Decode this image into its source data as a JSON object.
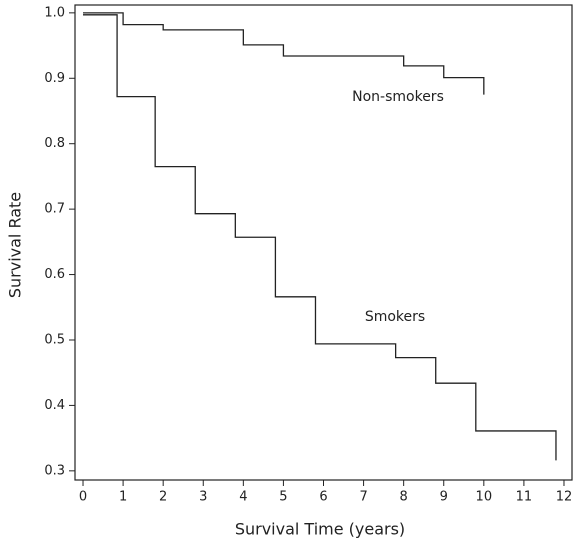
{
  "chart_data": {
    "type": "step",
    "x_label": "Survival Time (years)",
    "y_label": "Survival Rate",
    "xlim": [
      -0.2,
      12.2
    ],
    "ylim": [
      0.286,
      1.012
    ],
    "xticks": [
      0,
      1,
      2,
      3,
      4,
      5,
      6,
      7,
      8,
      9,
      10,
      11,
      12
    ],
    "yticks": [
      0.3,
      0.4,
      0.5,
      0.6,
      0.7,
      0.8,
      0.9,
      {
        "value": 1,
        "label": "1.0"
      }
    ],
    "grid": false,
    "series": [
      {
        "name": "Non-smokers",
        "color": "#222222",
        "x": [
          0,
          1.0,
          2.0,
          4.0,
          5.0,
          8.0,
          9.0,
          10.0
        ],
        "values": [
          1.0,
          0.982,
          0.974,
          0.951,
          0.934,
          0.919,
          0.901,
          0.875
        ]
      },
      {
        "name": "Smokers",
        "color": "#222222",
        "x": [
          0,
          0.85,
          1.8,
          2.8,
          3.8,
          4.8,
          5.8,
          7.8,
          8.8,
          9.8,
          11.8
        ],
        "values": [
          0.997,
          0.872,
          0.765,
          0.693,
          0.657,
          0.566,
          0.494,
          0.473,
          0.434,
          0.361,
          0.316
        ]
      }
    ]
  }
}
